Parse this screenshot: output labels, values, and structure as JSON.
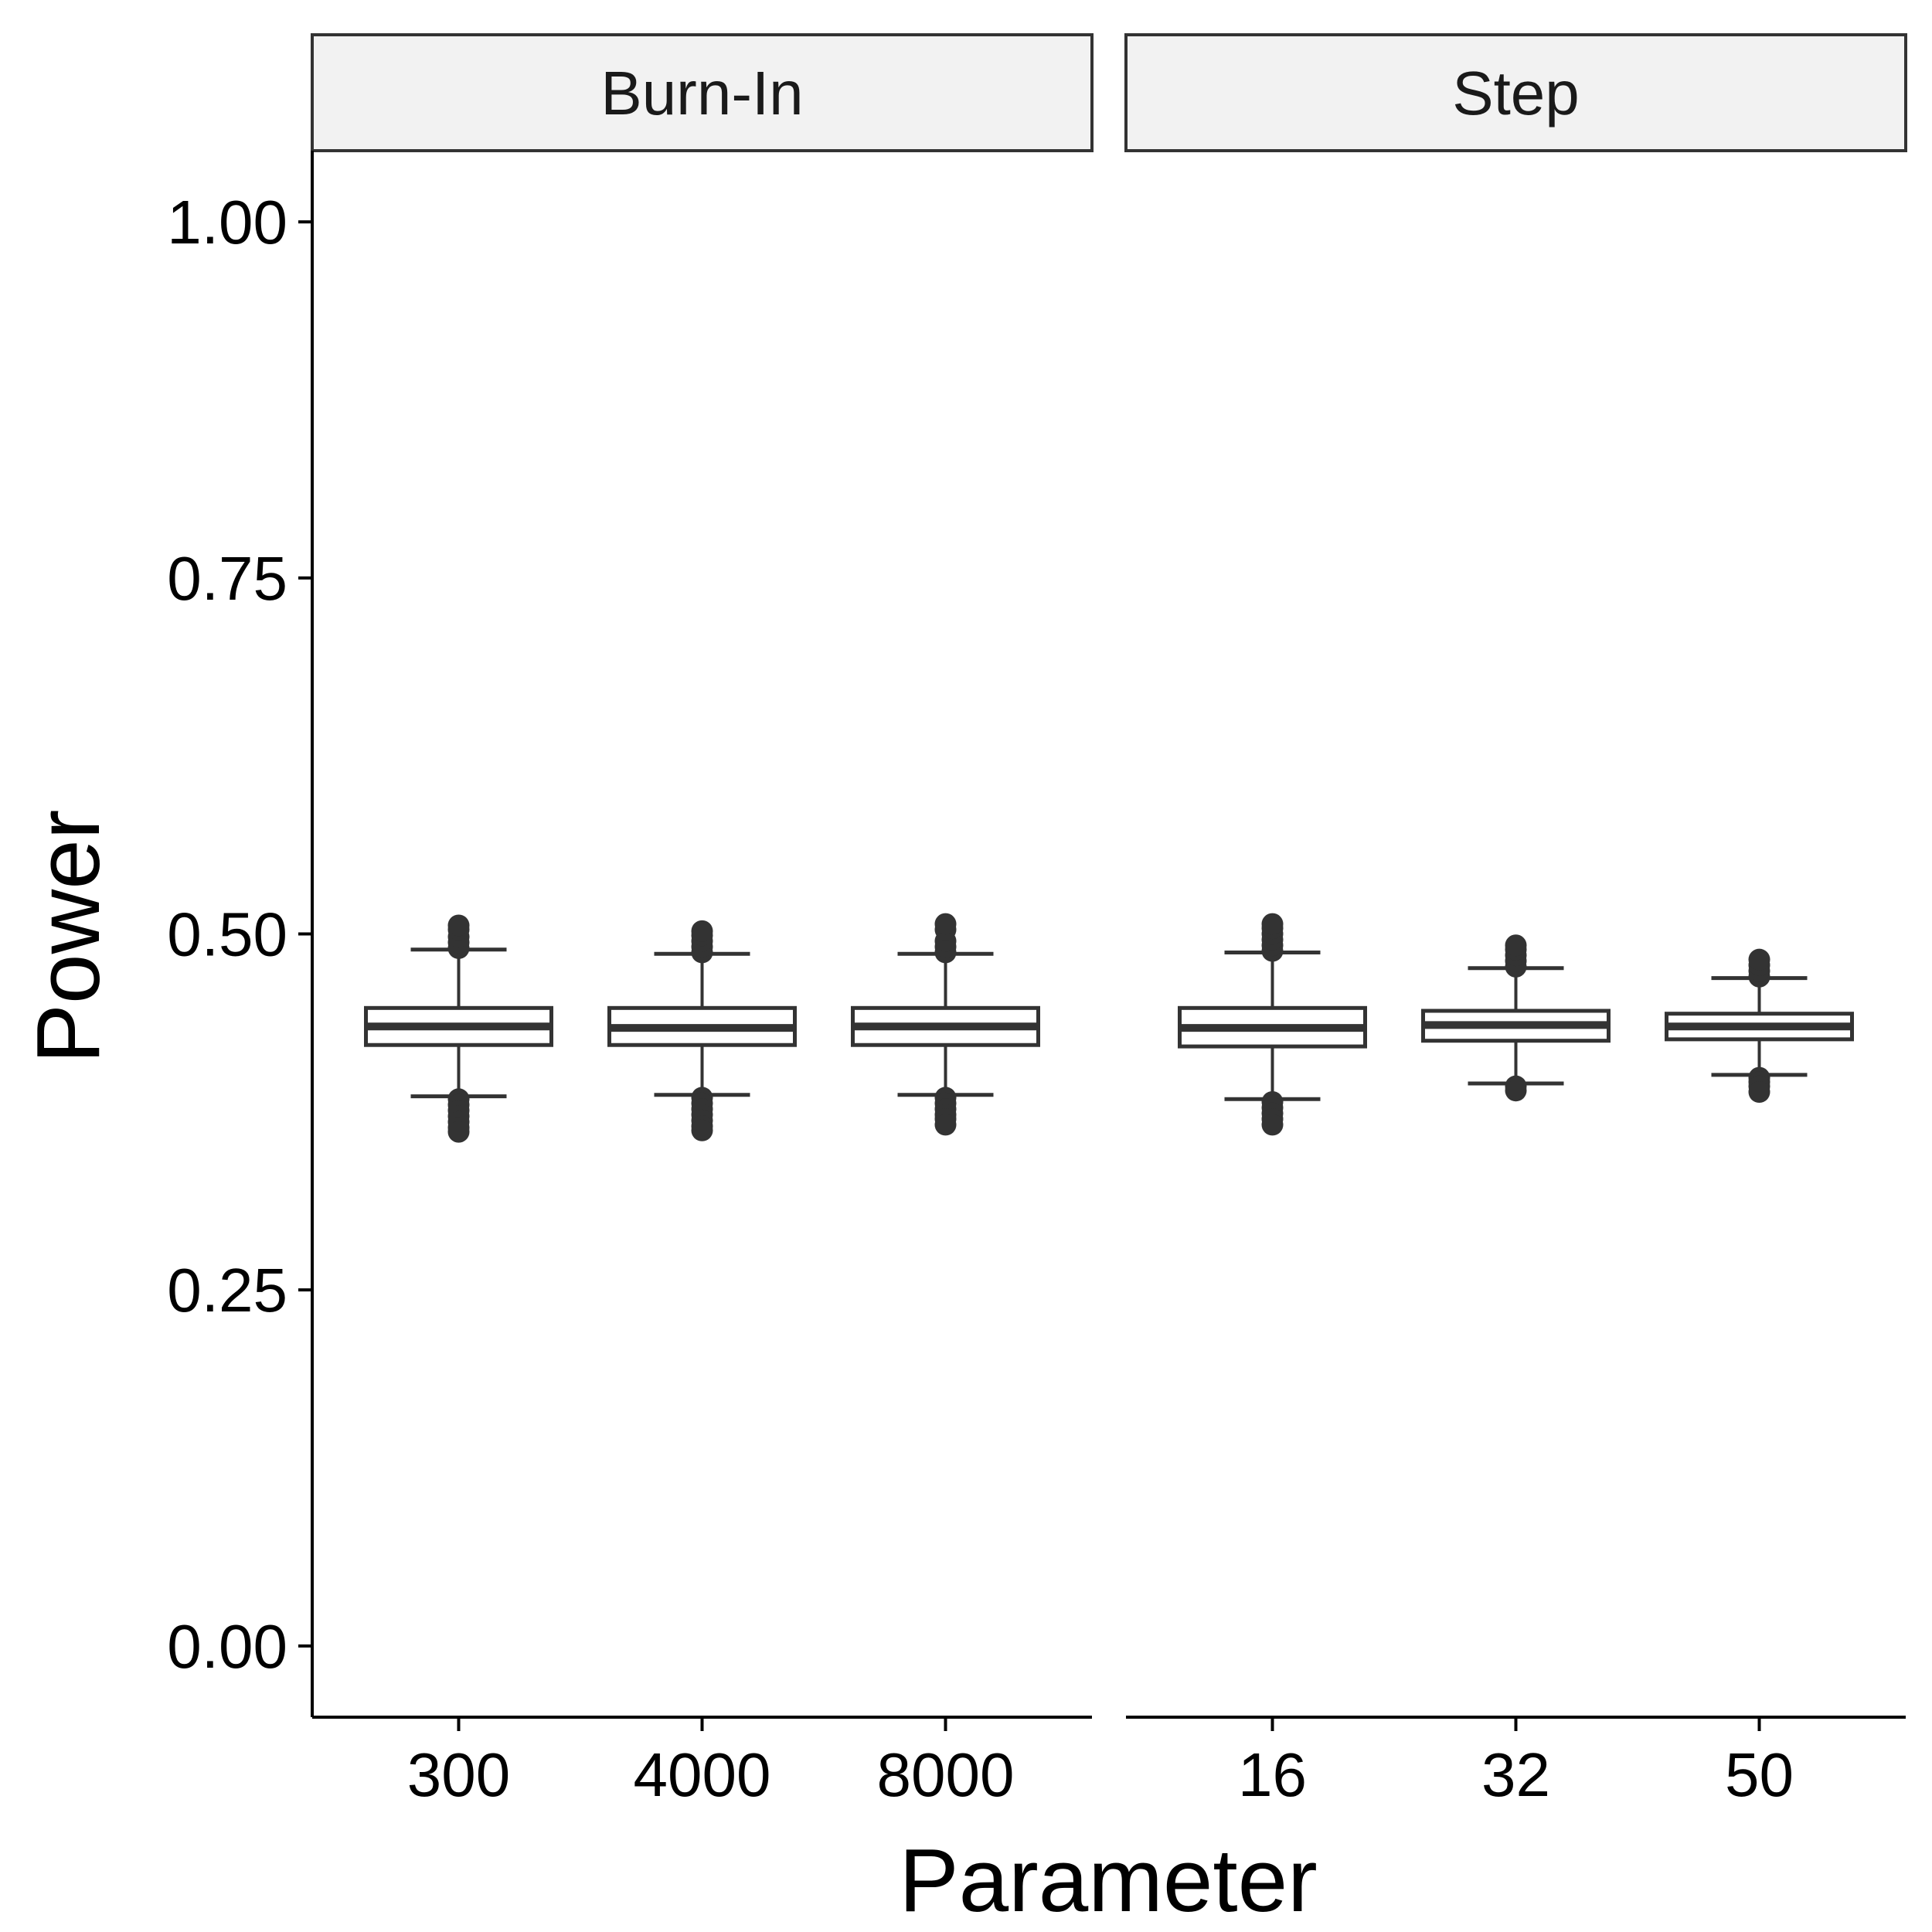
{
  "chart_data": {
    "type": "boxplot",
    "xlabel": "Parameter",
    "ylabel": "Power",
    "ylim": [
      -0.05,
      1.05
    ],
    "yticks": [
      0.0,
      0.25,
      0.5,
      0.75,
      1.0
    ],
    "ytick_labels": [
      "0.00",
      "0.25",
      "0.50",
      "0.75",
      "1.00"
    ],
    "grid": false,
    "box_fill": "#ffffff",
    "box_stroke": "#333333",
    "facets": [
      {
        "name": "Burn-In",
        "categories": [
          "300",
          "4000",
          "8000"
        ],
        "boxes": [
          {
            "q1": 0.422,
            "median": 0.435,
            "q3": 0.448,
            "whisker_low": 0.386,
            "whisker_high": 0.489,
            "outliers": [
              0.384,
              0.38,
              0.376,
              0.372,
              0.368,
              0.364,
              0.361,
              0.49,
              0.494,
              0.498,
              0.503,
              0.506
            ]
          },
          {
            "q1": 0.422,
            "median": 0.434,
            "q3": 0.448,
            "whisker_low": 0.387,
            "whisker_high": 0.486,
            "outliers": [
              0.385,
              0.381,
              0.377,
              0.373,
              0.369,
              0.365,
              0.362,
              0.487,
              0.491,
              0.495,
              0.499,
              0.502
            ]
          },
          {
            "q1": 0.422,
            "median": 0.435,
            "q3": 0.448,
            "whisker_low": 0.387,
            "whisker_high": 0.486,
            "outliers": [
              0.385,
              0.381,
              0.377,
              0.373,
              0.37,
              0.366,
              0.487,
              0.491,
              0.495,
              0.503,
              0.507
            ]
          }
        ]
      },
      {
        "name": "Step",
        "categories": [
          "16",
          "32",
          "50"
        ],
        "boxes": [
          {
            "q1": 0.421,
            "median": 0.434,
            "q3": 0.448,
            "whisker_low": 0.384,
            "whisker_high": 0.487,
            "outliers": [
              0.382,
              0.378,
              0.374,
              0.37,
              0.366,
              0.488,
              0.492,
              0.496,
              0.5,
              0.504,
              0.507
            ]
          },
          {
            "q1": 0.425,
            "median": 0.436,
            "q3": 0.446,
            "whisker_low": 0.395,
            "whisker_high": 0.476,
            "outliers": [
              0.393,
              0.39,
              0.477,
              0.481,
              0.485,
              0.489,
              0.492
            ]
          },
          {
            "q1": 0.426,
            "median": 0.435,
            "q3": 0.444,
            "whisker_low": 0.401,
            "whisker_high": 0.469,
            "outliers": [
              0.399,
              0.396,
              0.393,
              0.389,
              0.47,
              0.474,
              0.478,
              0.482
            ]
          }
        ]
      }
    ]
  }
}
